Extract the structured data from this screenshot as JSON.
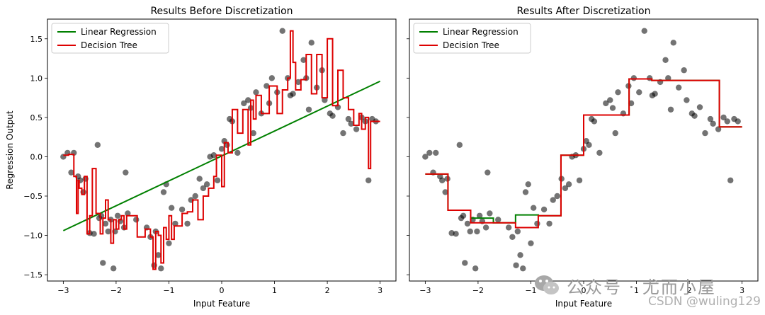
{
  "figure": {
    "ylabel": "Regression Output",
    "xlabel": "Input Feature",
    "x_ticks": [
      "−3",
      "−2",
      "−1",
      "0",
      "1",
      "2",
      "3"
    ],
    "y_ticks": [
      "−1.5",
      "−1.0",
      "−0.5",
      "0.0",
      "0.5",
      "1.0",
      "1.5"
    ]
  },
  "watermark": {
    "wechat_text": "公众号 · 尤而小屋",
    "csdn_text": "CSDN @wuling129",
    "icon": "wechat-icon"
  },
  "colors": {
    "linear": "#008000",
    "tree": "#dd0000",
    "points": "#000000"
  },
  "chart_data": [
    {
      "type": "line",
      "title": "Results Before Discretization",
      "xlabel": "Input Feature",
      "ylabel": "Regression Output",
      "xlim": [
        -3.3,
        3.3
      ],
      "ylim": [
        -1.58,
        1.75
      ],
      "legend": "top-left",
      "grid": false,
      "series": [
        {
          "name": "Linear Regression",
          "x": [
            -3.0,
            3.0
          ],
          "y": [
            -0.94,
            0.96
          ]
        },
        {
          "name": "Decision Tree",
          "x": [
            -3.0,
            -2.9,
            -2.8,
            -2.75,
            -2.72,
            -2.7,
            -2.65,
            -2.6,
            -2.55,
            -2.5,
            -2.45,
            -2.38,
            -2.3,
            -2.25,
            -2.2,
            -2.15,
            -2.1,
            -2.05,
            -2.0,
            -1.95,
            -1.9,
            -1.85,
            -1.8,
            -1.6,
            -1.45,
            -1.35,
            -1.3,
            -1.25,
            -1.2,
            -1.15,
            -1.1,
            -1.05,
            -1.0,
            -0.95,
            -0.9,
            -0.75,
            -0.65,
            -0.55,
            -0.45,
            -0.35,
            -0.25,
            -0.15,
            -0.1,
            0.0,
            0.05,
            0.12,
            0.2,
            0.3,
            0.4,
            0.5,
            0.55,
            0.6,
            0.65,
            0.75,
            0.9,
            1.05,
            1.15,
            1.25,
            1.3,
            1.35,
            1.4,
            1.5,
            1.6,
            1.7,
            1.8,
            1.9,
            2.0,
            2.1,
            2.2,
            2.3,
            2.4,
            2.5,
            2.6,
            2.65,
            2.72,
            2.78,
            2.82,
            2.9,
            3.0
          ],
          "y": [
            0.02,
            0.03,
            -0.25,
            -0.72,
            -0.3,
            -0.4,
            -0.48,
            -0.25,
            -0.98,
            -0.75,
            -0.15,
            -0.72,
            -0.98,
            -0.78,
            -0.55,
            -0.8,
            -1.1,
            -0.8,
            -0.92,
            -0.8,
            -0.75,
            -0.92,
            -0.75,
            -1.02,
            -0.92,
            -1.02,
            -1.43,
            -0.95,
            -1.0,
            -1.35,
            -0.9,
            -1.05,
            -0.75,
            -1.05,
            -0.88,
            -0.72,
            -0.7,
            -0.55,
            -0.8,
            -0.5,
            -0.4,
            -0.25,
            0.02,
            -0.38,
            0.18,
            0.05,
            0.6,
            0.3,
            0.6,
            0.15,
            0.72,
            0.48,
            0.78,
            0.55,
            0.9,
            0.55,
            0.85,
            1.0,
            1.6,
            1.2,
            0.85,
            0.98,
            1.3,
            0.8,
            1.3,
            0.75,
            1.5,
            0.65,
            1.1,
            0.75,
            0.6,
            0.4,
            0.55,
            0.35,
            0.5,
            -0.15,
            0.45,
            0.45,
            0.45
          ]
        }
      ],
      "scatter": {
        "x": [
          -3.0,
          -2.92,
          -2.85,
          -2.8,
          -2.72,
          -2.68,
          -2.62,
          -2.58,
          -2.5,
          -2.42,
          -2.35,
          -2.32,
          -2.28,
          -2.25,
          -2.2,
          -2.15,
          -2.1,
          -2.05,
          -2.02,
          -1.97,
          -1.92,
          -1.85,
          -1.82,
          -1.78,
          -1.62,
          -1.42,
          -1.35,
          -1.28,
          -1.25,
          -1.2,
          -1.15,
          -1.1,
          -1.05,
          -1.0,
          -0.95,
          -0.88,
          -0.75,
          -0.65,
          -0.58,
          -0.5,
          -0.42,
          -0.35,
          -0.28,
          -0.22,
          -0.15,
          -0.08,
          0.0,
          0.05,
          0.1,
          0.15,
          0.2,
          0.3,
          0.42,
          0.5,
          0.55,
          0.6,
          0.65,
          0.75,
          0.85,
          0.9,
          0.95,
          1.05,
          1.15,
          1.25,
          1.3,
          1.35,
          1.45,
          1.55,
          1.6,
          1.65,
          1.7,
          1.8,
          1.9,
          1.95,
          2.05,
          2.1,
          2.2,
          2.3,
          2.4,
          2.45,
          2.55,
          2.65,
          2.72,
          2.78,
          2.85,
          2.92
        ],
        "y": [
          0.0,
          0.05,
          -0.2,
          0.05,
          -0.25,
          -0.3,
          -0.45,
          -0.28,
          -0.97,
          -0.98,
          0.15,
          -0.78,
          -0.75,
          -1.35,
          -0.85,
          -0.95,
          -0.8,
          -1.42,
          -0.95,
          -0.75,
          -0.82,
          -0.9,
          -0.2,
          -0.72,
          -0.8,
          -0.9,
          -1.02,
          -1.38,
          -0.95,
          -1.25,
          -1.42,
          -0.45,
          -0.35,
          -1.1,
          -0.65,
          -0.85,
          -0.67,
          -0.85,
          -0.55,
          -0.5,
          -0.28,
          -0.4,
          -0.35,
          0.0,
          0.02,
          -0.3,
          0.1,
          0.2,
          0.15,
          0.48,
          0.45,
          0.05,
          0.68,
          0.72,
          0.62,
          0.3,
          0.82,
          0.55,
          0.9,
          0.68,
          1.0,
          0.82,
          1.6,
          1.0,
          0.78,
          0.8,
          0.95,
          1.23,
          1.0,
          0.6,
          1.45,
          0.88,
          1.1,
          0.72,
          0.55,
          0.52,
          0.63,
          0.3,
          0.48,
          0.42,
          0.35,
          0.5,
          0.45,
          -0.3,
          0.48,
          0.45
        ]
      }
    },
    {
      "type": "line",
      "title": "Results After Discretization",
      "xlabel": "Input Feature",
      "ylabel": "",
      "xlim": [
        -3.3,
        3.3
      ],
      "ylim": [
        -1.58,
        1.75
      ],
      "legend": "top-left",
      "grid": false,
      "series": [
        {
          "name": "Linear Regression",
          "x": [
            -3.0,
            -2.57,
            -2.57,
            -2.14,
            -2.14,
            -1.71,
            -1.71,
            -1.29,
            -1.29,
            -0.86,
            -0.86,
            -0.43,
            -0.43,
            0.0,
            0.0,
            0.43,
            0.43,
            0.86,
            0.86,
            1.29,
            1.29,
            1.71,
            1.71,
            2.14,
            2.14,
            2.57,
            2.57,
            3.0
          ],
          "y": [
            -0.22,
            -0.22,
            -0.68,
            -0.68,
            -0.78,
            -0.78,
            -0.84,
            -0.84,
            -0.74,
            -0.74,
            -0.75,
            -0.75,
            0.02,
            0.02,
            0.53,
            0.53,
            0.53,
            0.53,
            0.99,
            0.99,
            0.97,
            0.97,
            0.97,
            0.97,
            0.97,
            0.97,
            0.38,
            0.38
          ]
        },
        {
          "name": "Decision Tree",
          "x": [
            -3.0,
            -2.57,
            -2.57,
            -2.14,
            -2.14,
            -1.71,
            -1.71,
            -1.29,
            -1.29,
            -0.86,
            -0.86,
            -0.43,
            -0.43,
            0.0,
            0.0,
            0.43,
            0.43,
            0.86,
            0.86,
            1.29,
            1.29,
            1.71,
            1.71,
            2.14,
            2.14,
            2.57,
            2.57,
            3.0
          ],
          "y": [
            -0.22,
            -0.22,
            -0.68,
            -0.68,
            -0.84,
            -0.84,
            -0.84,
            -0.84,
            -0.9,
            -0.9,
            -0.75,
            -0.75,
            0.02,
            0.02,
            0.53,
            0.53,
            0.53,
            0.53,
            0.99,
            0.99,
            0.97,
            0.97,
            0.97,
            0.97,
            0.97,
            0.97,
            0.38,
            0.38
          ]
        }
      ],
      "scatter": {
        "x": [
          -3.0,
          -2.92,
          -2.85,
          -2.8,
          -2.72,
          -2.68,
          -2.62,
          -2.58,
          -2.5,
          -2.42,
          -2.35,
          -2.32,
          -2.28,
          -2.25,
          -2.2,
          -2.15,
          -2.1,
          -2.05,
          -2.02,
          -1.97,
          -1.92,
          -1.85,
          -1.82,
          -1.78,
          -1.62,
          -1.42,
          -1.35,
          -1.28,
          -1.25,
          -1.2,
          -1.15,
          -1.1,
          -1.05,
          -1.0,
          -0.95,
          -0.88,
          -0.75,
          -0.65,
          -0.58,
          -0.5,
          -0.42,
          -0.35,
          -0.28,
          -0.22,
          -0.15,
          -0.08,
          0.0,
          0.05,
          0.1,
          0.15,
          0.2,
          0.3,
          0.42,
          0.5,
          0.55,
          0.6,
          0.65,
          0.75,
          0.85,
          0.9,
          0.95,
          1.05,
          1.15,
          1.25,
          1.3,
          1.35,
          1.45,
          1.55,
          1.6,
          1.65,
          1.7,
          1.8,
          1.9,
          1.95,
          2.05,
          2.1,
          2.2,
          2.3,
          2.4,
          2.45,
          2.55,
          2.65,
          2.72,
          2.78,
          2.85,
          2.92
        ],
        "y": [
          0.0,
          0.05,
          -0.2,
          0.05,
          -0.25,
          -0.3,
          -0.45,
          -0.28,
          -0.97,
          -0.98,
          0.15,
          -0.78,
          -0.75,
          -1.35,
          -0.85,
          -0.95,
          -0.8,
          -1.42,
          -0.95,
          -0.75,
          -0.82,
          -0.9,
          -0.2,
          -0.72,
          -0.8,
          -0.9,
          -1.02,
          -1.38,
          -0.95,
          -1.25,
          -1.42,
          -0.45,
          -0.35,
          -1.1,
          -0.65,
          -0.85,
          -0.67,
          -0.85,
          -0.55,
          -0.5,
          -0.28,
          -0.4,
          -0.35,
          0.0,
          0.02,
          -0.3,
          0.1,
          0.2,
          0.15,
          0.48,
          0.45,
          0.05,
          0.68,
          0.72,
          0.62,
          0.3,
          0.82,
          0.55,
          0.9,
          0.68,
          1.0,
          0.82,
          1.6,
          1.0,
          0.78,
          0.8,
          0.95,
          1.23,
          1.0,
          0.6,
          1.45,
          0.88,
          1.1,
          0.72,
          0.55,
          0.52,
          0.63,
          0.3,
          0.48,
          0.42,
          0.35,
          0.5,
          0.45,
          -0.3,
          0.48,
          0.45
        ]
      }
    }
  ]
}
